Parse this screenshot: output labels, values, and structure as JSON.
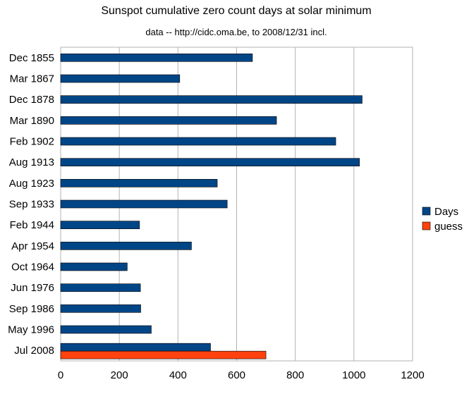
{
  "chart_data": {
    "type": "bar",
    "orientation": "horizontal",
    "title": "Sunspot cumulative zero count days at solar minimum",
    "subtitle": "data -- http://cidc.oma.be, to 2008/12/31 incl.",
    "categories": [
      "Dec 1855",
      "Mar 1867",
      "Dec 1878",
      "Mar 1890",
      "Feb 1902",
      "Aug 1913",
      "Aug 1923",
      "Sep 1933",
      "Feb 1944",
      "Apr 1954",
      "Oct 1964",
      "Jun 1976",
      "Sep 1986",
      "May 1996",
      "Jul 2008"
    ],
    "series": [
      {
        "name": "Days",
        "color": "#004586",
        "values": [
          654,
          406,
          1028,
          736,
          938,
          1019,
          534,
          568,
          269,
          446,
          227,
          272,
          273,
          309,
          511
        ]
      },
      {
        "name": "guess",
        "color": "#ff420e",
        "values": [
          null,
          null,
          null,
          null,
          null,
          null,
          null,
          null,
          null,
          null,
          null,
          null,
          null,
          null,
          700
        ]
      }
    ],
    "xlim": [
      0,
      1200
    ],
    "xticks": [
      0,
      200,
      400,
      600,
      800,
      1000,
      1200
    ],
    "grid": "vertical",
    "legend_position": "right"
  }
}
